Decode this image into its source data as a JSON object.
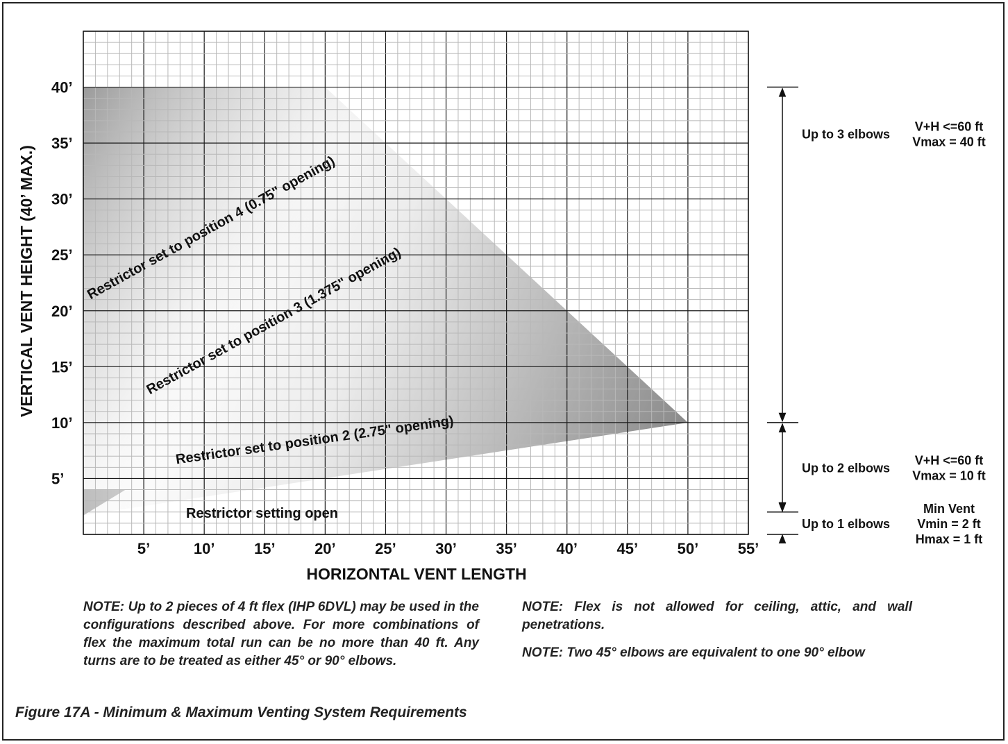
{
  "chart_data": {
    "type": "area",
    "xlabel": "HORIZONTAL VENT LENGTH",
    "ylabel": "VERTICAL VENT HEIGHT (40’ MAX.)",
    "xlim": [
      0,
      55
    ],
    "ylim": [
      0,
      45
    ],
    "x_ticks": [
      "5’",
      "10’",
      "15’",
      "20’",
      "25’",
      "30’",
      "35’",
      "40’",
      "45’",
      "50’",
      "55’"
    ],
    "y_ticks": [
      "5’",
      "10’",
      "15’",
      "20’",
      "25’",
      "30’",
      "35’",
      "40’"
    ],
    "x_tick_values": [
      5,
      10,
      15,
      20,
      25,
      30,
      35,
      40,
      45,
      50,
      55
    ],
    "y_tick_values": [
      5,
      10,
      15,
      20,
      25,
      30,
      35,
      40
    ],
    "grid": true,
    "envelope": {
      "points": [
        [
          0,
          40
        ],
        [
          20,
          40
        ],
        [
          50,
          10
        ],
        [
          0,
          1.7
        ]
      ],
      "lower_band_points": [
        [
          0,
          4
        ],
        [
          3.5,
          4
        ],
        [
          0,
          1.7
        ]
      ]
    },
    "regions": [
      {
        "label": "Restrictor set to position 4 (0.75\" opening)",
        "x": 0.6,
        "y": 21,
        "angle_deg": -29
      },
      {
        "label": "Restrictor set to position 3 (1.375\" opening)",
        "x": 5.5,
        "y": 12.5,
        "angle_deg": -29
      },
      {
        "label": "Restrictor set to position 2 (2.75\" opening)",
        "x": 7.7,
        "y": 6.3,
        "angle_deg": -8
      },
      {
        "label": "Restrictor setting open",
        "x": 8.5,
        "y": 1.5,
        "angle_deg": 0
      }
    ],
    "annotations": [
      {
        "range": [
          10,
          40
        ],
        "elbows": "Up to 3 elbows",
        "rule_1": "V+H <=60 ft",
        "rule_2": "Vmax = 40 ft"
      },
      {
        "range": [
          2,
          10
        ],
        "elbows": "Up to 2 elbows",
        "rule_1": "V+H <=60 ft",
        "rule_2": "Vmax = 10 ft"
      },
      {
        "range": [
          0,
          2
        ],
        "elbows": "Up to 1 elbows",
        "rule_0": "Min Vent",
        "rule_1": "Vmin = 2 ft",
        "rule_2": "Hmax = 1 ft"
      }
    ]
  },
  "notes": {
    "left": "NOTE:  Up to 2 pieces of 4 ft flex (IHP 6DVL) may be used in the configurations described above. For more combinations of flex the maximum total run can be no more than 40 ft. Any turns are to be treated as either 45° or 90° elbows.",
    "right_1": "NOTE:  Flex is not allowed for ceiling, attic, and wall penetrations.",
    "right_2": "NOTE: Two 45° elbows are equivalent to one 90° elbow"
  },
  "caption": "Figure 17A - Minimum & Maximum Venting System Requirements",
  "colors": {
    "grid_minor": "#b8b8b8",
    "grid_major": "#1a1a1a",
    "shade_dark": "#888888",
    "shade_light": "#ffffff"
  }
}
